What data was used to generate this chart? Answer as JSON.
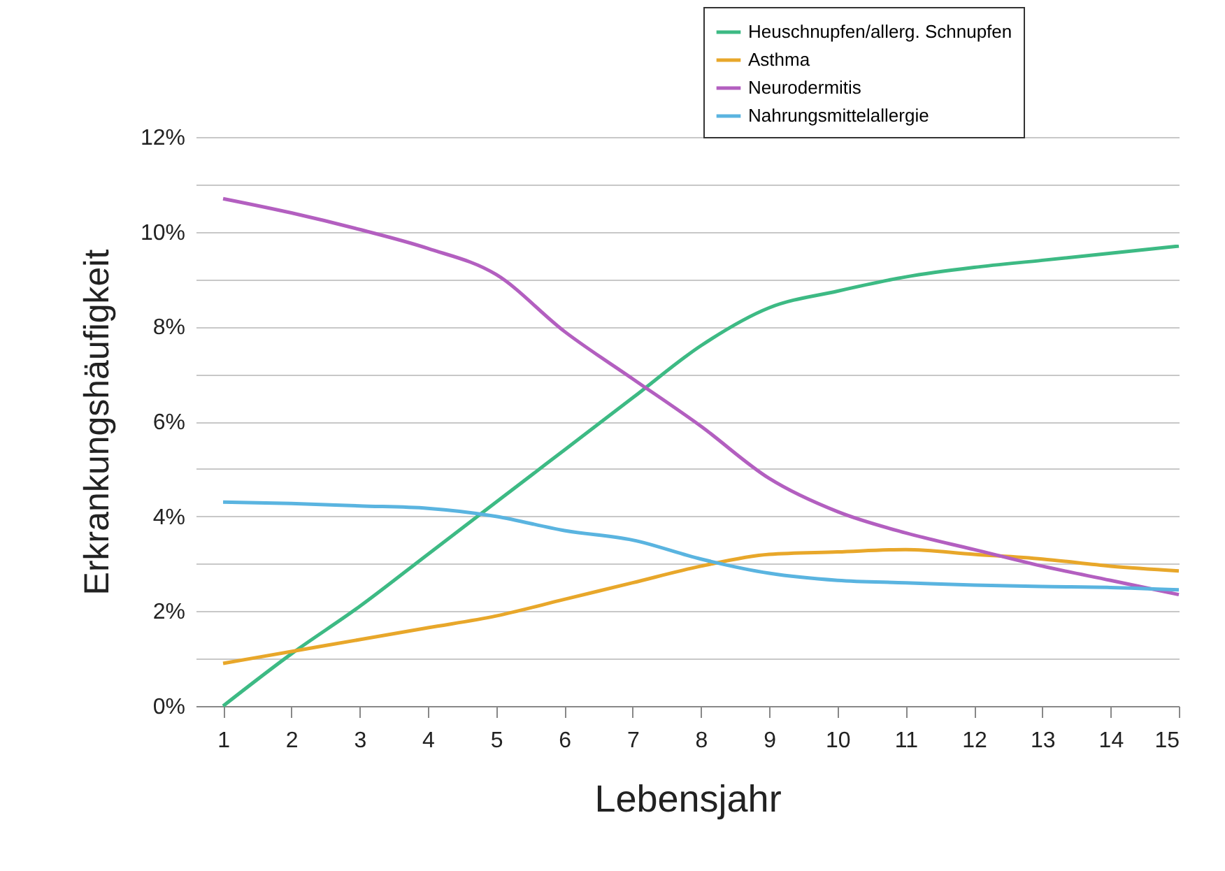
{
  "chart_data": {
    "type": "line",
    "xlabel": "Lebensjahr",
    "ylabel": "Erkrankungshäufigkeit",
    "x": [
      1,
      2,
      3,
      4,
      5,
      6,
      7,
      8,
      9,
      10,
      11,
      12,
      13,
      14,
      15
    ],
    "series": [
      {
        "name": "Heuschnupfen/allerg. Schnupfen",
        "color": "#3dba84",
        "values": [
          0,
          1.1,
          2.1,
          3.2,
          4.3,
          5.4,
          6.5,
          7.6,
          8.4,
          8.75,
          9.05,
          9.25,
          9.4,
          9.55,
          9.7
        ]
      },
      {
        "name": "Asthma",
        "color": "#e8a72a",
        "values": [
          0.9,
          1.15,
          1.4,
          1.65,
          1.9,
          2.25,
          2.6,
          2.95,
          3.2,
          3.25,
          3.3,
          3.2,
          3.1,
          2.95,
          2.85
        ]
      },
      {
        "name": "Neurodermitis",
        "color": "#b35fc0",
        "values": [
          10.7,
          10.4,
          10.05,
          9.65,
          9.1,
          7.9,
          6.9,
          5.9,
          4.8,
          4.1,
          3.65,
          3.3,
          2.95,
          2.65,
          2.35
        ]
      },
      {
        "name": "Nahrungsmittelallergie",
        "color": "#5ab4e0",
        "values": [
          4.3,
          4.27,
          4.22,
          4.17,
          4.0,
          3.7,
          3.5,
          3.1,
          2.8,
          2.65,
          2.6,
          2.55,
          2.52,
          2.5,
          2.45
        ]
      }
    ],
    "xlim": [
      0.6,
      15
    ],
    "xticks": [
      1,
      2,
      3,
      4,
      5,
      6,
      7,
      8,
      9,
      10,
      11,
      12,
      13,
      14,
      15
    ],
    "ylim": [
      0,
      12
    ],
    "yticks": [
      {
        "value": 0,
        "label": "0%"
      },
      {
        "value": 1,
        "label": null
      },
      {
        "value": 2,
        "label": "2%"
      },
      {
        "value": 3,
        "label": null
      },
      {
        "value": 4,
        "label": "4%"
      },
      {
        "value": 5,
        "label": null
      },
      {
        "value": 6,
        "label": "6%"
      },
      {
        "value": 7,
        "label": null
      },
      {
        "value": 8,
        "label": "8%"
      },
      {
        "value": 9,
        "label": null
      },
      {
        "value": 10,
        "label": "10%"
      },
      {
        "value": 11,
        "label": null
      },
      {
        "value": 12,
        "label": "12%"
      }
    ],
    "grid": "y",
    "legend": "top right",
    "marker": "none",
    "line_style": "solid"
  }
}
